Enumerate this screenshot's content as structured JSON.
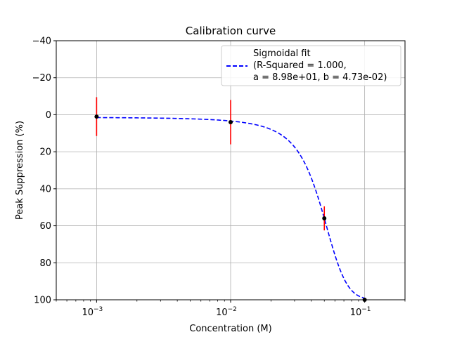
{
  "chart_data": {
    "type": "scatter",
    "title": "Calibration curve",
    "xlabel": "Concentration (M)",
    "ylabel": "Peak Suppression (%)",
    "xscale": "log",
    "xlim": [
      0.0005,
      0.2
    ],
    "ylim": [
      100,
      -40
    ],
    "y_inverted": true,
    "grid": true,
    "legend_position": "top-right",
    "x_ticks": [
      {
        "value": 0.001,
        "base": "10",
        "exp": "−3"
      },
      {
        "value": 0.01,
        "base": "10",
        "exp": "−2"
      },
      {
        "value": 0.1,
        "base": "10",
        "exp": "−1"
      }
    ],
    "y_ticks": [
      {
        "value": -40,
        "label": "−40"
      },
      {
        "value": -20,
        "label": "−20"
      },
      {
        "value": 0,
        "label": "0"
      },
      {
        "value": 20,
        "label": "20"
      },
      {
        "value": 40,
        "label": "40"
      },
      {
        "value": 60,
        "label": "60"
      },
      {
        "value": 80,
        "label": "80"
      },
      {
        "value": 100,
        "label": "100"
      }
    ],
    "points": [
      {
        "x": 0.001,
        "y": 1,
        "yerr": 10.5
      },
      {
        "x": 0.01,
        "y": 4,
        "yerr": 12
      },
      {
        "x": 0.05,
        "y": 56,
        "yerr": 6.5
      },
      {
        "x": 0.1,
        "y": 100,
        "yerr": 0
      }
    ],
    "fit": {
      "model": "sigmoid",
      "a": 89.8,
      "b": 0.0473,
      "legend_lines": [
        "Sigmoidal fit",
        "(R-Squared = 1.000,",
        "a = 8.98e+01, b = 4.73e-02)"
      ]
    },
    "colors": {
      "fit": "#0000ff",
      "errorbar": "#ff0000",
      "point": "#000000",
      "grid": "#b0b0b0"
    }
  }
}
